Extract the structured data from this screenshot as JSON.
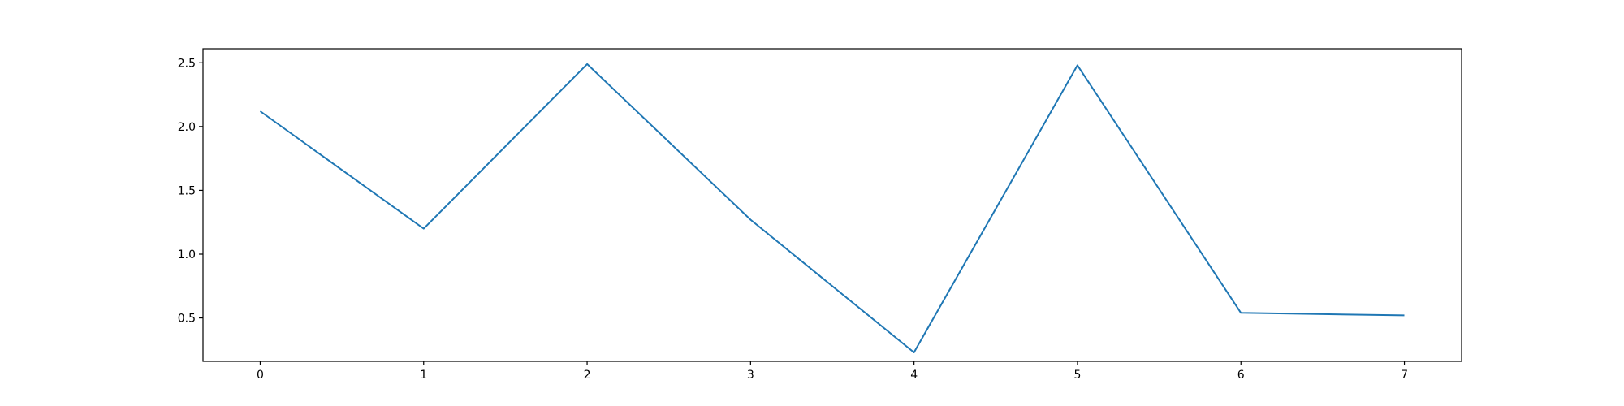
{
  "chart_data": {
    "type": "line",
    "title": "",
    "xlabel": "",
    "ylabel": "",
    "x": [
      0,
      1,
      2,
      3,
      4,
      5,
      6,
      7
    ],
    "series": [
      {
        "values": [
          2.12,
          1.2,
          2.49,
          1.27,
          0.23,
          2.48,
          0.54,
          0.52
        ],
        "color": "#1f77b4"
      }
    ],
    "xlim": [
      -0.35,
      7.35
    ],
    "ylim": [
      0.16,
      2.61
    ],
    "xticks": [
      0,
      1,
      2,
      3,
      4,
      5,
      6,
      7
    ],
    "xtick_labels": [
      "0",
      "1",
      "2",
      "3",
      "4",
      "5",
      "6",
      "7"
    ],
    "yticks": [
      0.5,
      1.0,
      1.5,
      2.0,
      2.5
    ],
    "ytick_labels": [
      "0.5",
      "1.0",
      "1.5",
      "2.0",
      "2.5"
    ],
    "grid": false,
    "legend": "none"
  }
}
